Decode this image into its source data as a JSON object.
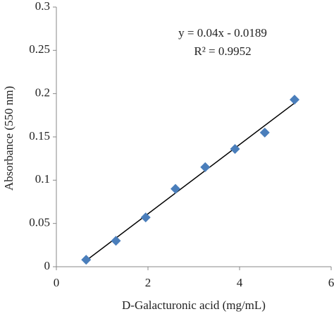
{
  "chart_data": {
    "type": "scatter",
    "x_label": "D-Galacturonic acid (mg/mL)",
    "y_label": "Absorbance (550 nm)",
    "x": [
      0.65,
      1.3,
      1.95,
      2.6,
      3.25,
      3.9,
      4.55,
      5.2
    ],
    "values": [
      0.008,
      0.03,
      0.057,
      0.09,
      0.115,
      0.136,
      0.155,
      0.193
    ],
    "color": "#4a7ebb",
    "xlim": [
      0,
      6
    ],
    "xticks": [
      0,
      2,
      4,
      6
    ],
    "ylim": [
      0,
      0.3
    ],
    "yticks": [
      0,
      0.05,
      0.1,
      0.15,
      0.2,
      0.25,
      0.3
    ],
    "grid": false,
    "trendline": {
      "slope": 0.04,
      "intercept": -0.0189,
      "equation": "y = 0.04x - 0.0189",
      "r_squared": "R² = 0.9952",
      "color": "#000000"
    }
  }
}
